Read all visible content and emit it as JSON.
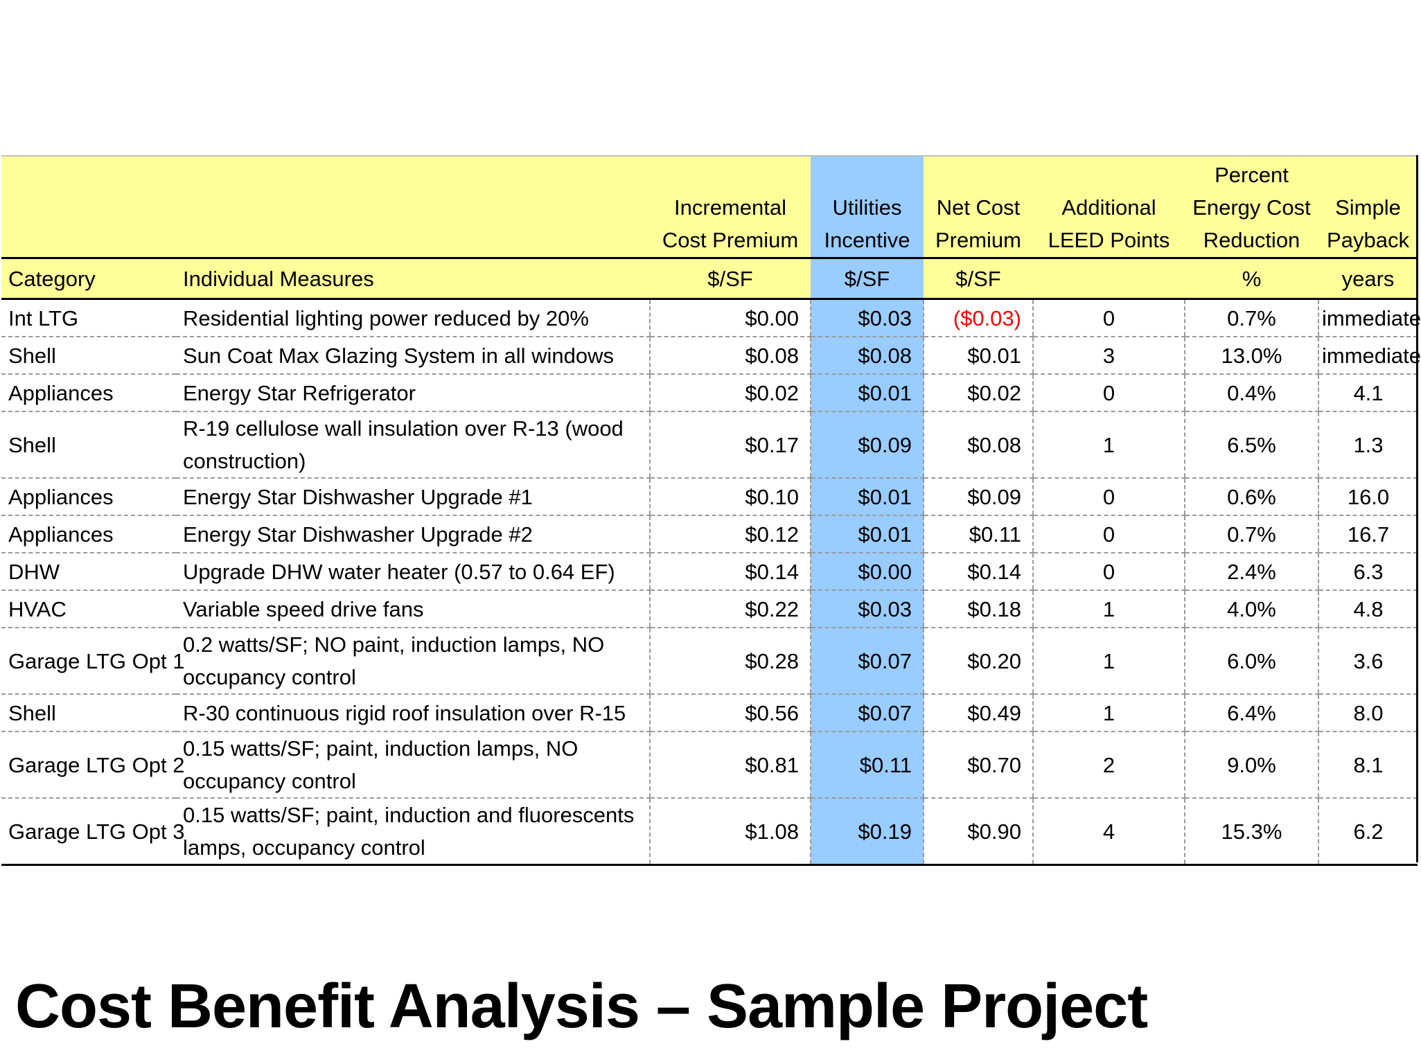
{
  "title": "Cost Benefit Analysis – Sample Project",
  "table": {
    "header_top": {
      "incremental": [
        "Incremental",
        "Cost Premium"
      ],
      "utilities": [
        "Utilities",
        "Incentive"
      ],
      "net": [
        "Net Cost",
        "Premium"
      ],
      "leed": [
        "Additional",
        "LEED Points"
      ],
      "percent": [
        "Percent",
        "Energy Cost",
        "Reduction"
      ],
      "payback": [
        "Simple",
        "Payback"
      ]
    },
    "header_units": {
      "category": "Category",
      "measures": "Individual Measures",
      "incremental": "$/SF",
      "utilities": "$/SF",
      "net": "$/SF",
      "leed": "",
      "percent": "%",
      "payback": "years"
    },
    "rows": [
      {
        "category": "Int LTG",
        "measure": "Residential lighting power reduced by 20%",
        "incremental": "$0.00",
        "utilities": "$0.03",
        "net": "($0.03)",
        "leed": "0",
        "percent": "0.7%",
        "payback": "immediate",
        "net_negative": true
      },
      {
        "category": "Shell",
        "measure": "Sun Coat Max Glazing System in all windows",
        "incremental": "$0.08",
        "utilities": "$0.08",
        "net": "$0.01",
        "leed": "3",
        "percent": "13.0%",
        "payback": "immediate"
      },
      {
        "category": "Appliances",
        "measure": "Energy Star Refrigerator",
        "incremental": "$0.02",
        "utilities": "$0.01",
        "net": "$0.02",
        "leed": "0",
        "percent": "0.4%",
        "payback": "4.1"
      },
      {
        "category": "Shell",
        "measure": "R-19 cellulose wall insulation over R-13 (wood construction)",
        "incremental": "$0.17",
        "utilities": "$0.09",
        "net": "$0.08",
        "leed": "1",
        "percent": "6.5%",
        "payback": "1.3",
        "tall": true
      },
      {
        "category": "Appliances",
        "measure": "Energy Star Dishwasher Upgrade #1",
        "incremental": "$0.10",
        "utilities": "$0.01",
        "net": "$0.09",
        "leed": "0",
        "percent": "0.6%",
        "payback": "16.0"
      },
      {
        "category": "Appliances",
        "measure": "Energy Star Dishwasher Upgrade #2",
        "incremental": "$0.12",
        "utilities": "$0.01",
        "net": "$0.11",
        "leed": "0",
        "percent": "0.7%",
        "payback": "16.7"
      },
      {
        "category": "DHW",
        "measure": "Upgrade DHW water heater (0.57 to 0.64 EF)",
        "incremental": "$0.14",
        "utilities": "$0.00",
        "net": "$0.14",
        "leed": "0",
        "percent": "2.4%",
        "payback": "6.3"
      },
      {
        "category": "HVAC",
        "measure": "Variable speed drive fans",
        "incremental": "$0.22",
        "utilities": "$0.03",
        "net": "$0.18",
        "leed": "1",
        "percent": "4.0%",
        "payback": "4.8"
      },
      {
        "category": "Garage LTG Opt 1",
        "measure": "0.2 watts/SF; NO paint, induction lamps, NO occupancy control",
        "incremental": "$0.28",
        "utilities": "$0.07",
        "net": "$0.20",
        "leed": "1",
        "percent": "6.0%",
        "payback": "3.6",
        "tall": true
      },
      {
        "category": "Shell",
        "measure": "R-30 continuous rigid roof insulation over R-15",
        "incremental": "$0.56",
        "utilities": "$0.07",
        "net": "$0.49",
        "leed": "1",
        "percent": "6.4%",
        "payback": "8.0"
      },
      {
        "category": "Garage LTG Opt 2",
        "measure": "0.15 watts/SF; paint, induction lamps, NO occupancy control",
        "incremental": "$0.81",
        "utilities": "$0.11",
        "net": "$0.70",
        "leed": "2",
        "percent": "9.0%",
        "payback": "8.1",
        "tall": true
      },
      {
        "category": "Garage LTG Opt 3",
        "measure": "0.15 watts/SF; paint, induction and fluorescents lamps, occupancy control",
        "incremental": "$1.08",
        "utilities": "$0.19",
        "net": "$0.90",
        "leed": "4",
        "percent": "15.3%",
        "payback": "6.2",
        "tall": true
      }
    ]
  },
  "colors": {
    "header_bg": "#ffff99",
    "incentive_bg": "#99ccff",
    "negative": "#ff0000"
  }
}
